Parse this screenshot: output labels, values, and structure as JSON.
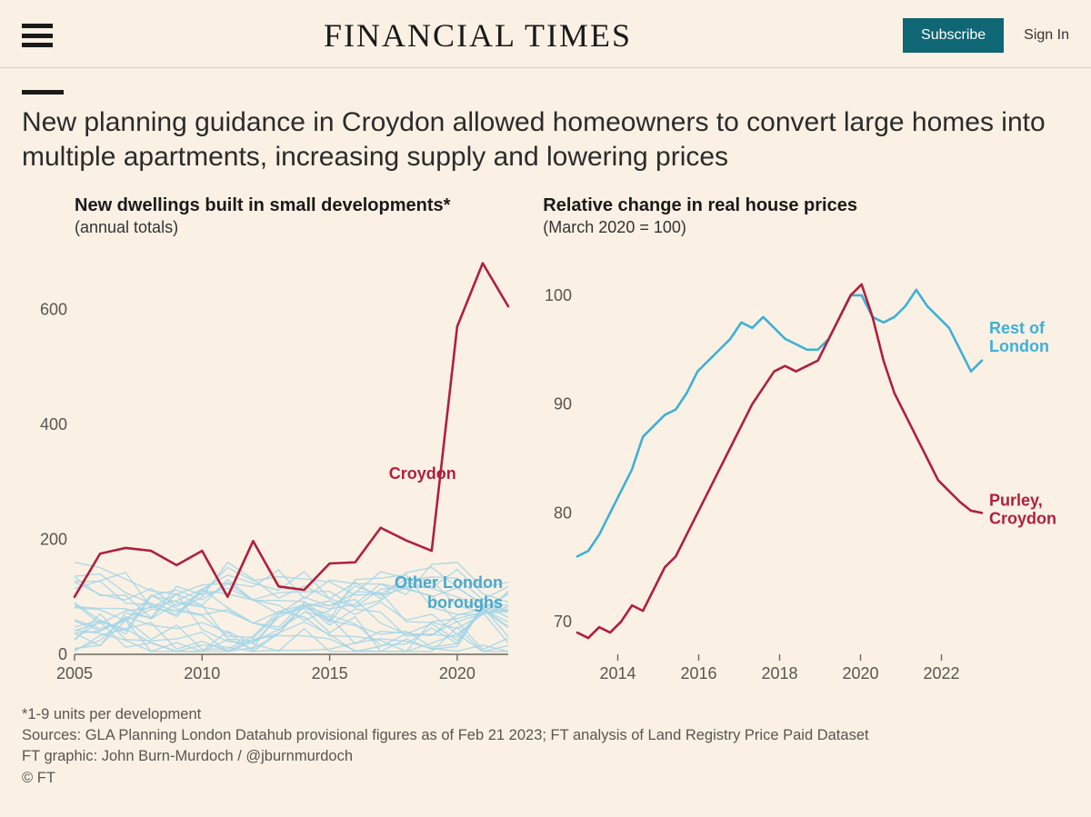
{
  "header": {
    "brand": "FINANCIAL TIMES",
    "subscribe_label": "Subscribe",
    "signin_label": "Sign In"
  },
  "kicker_rule_color": "#1a1a1a",
  "headline": "New planning guidance in Croydon allowed homeowners to convert large homes into multiple apartments, increasing supply and lowering prices",
  "chart_left": {
    "type": "line-multi",
    "title": "New dwellings built in small developments*",
    "subtitle": "(annual totals)",
    "title_fontsize": 20,
    "sub_fontsize": 18,
    "x_years": [
      2005,
      2006,
      2007,
      2008,
      2009,
      2010,
      2011,
      2012,
      2013,
      2014,
      2015,
      2016,
      2017,
      2018,
      2019,
      2020,
      2021,
      2022
    ],
    "x_ticks": [
      2005,
      2010,
      2015,
      2020
    ],
    "y_ticks": [
      0,
      200,
      400,
      600
    ],
    "ylim": [
      0,
      700
    ],
    "baseline_color": "#6b675f",
    "axis_label_color": "#595551",
    "croydon": {
      "color": "#b01f3c",
      "width": 2.6,
      "label": "Croydon",
      "values": [
        100,
        175,
        185,
        180,
        155,
        180,
        100,
        197,
        118,
        112,
        158,
        160,
        220,
        198,
        180,
        570,
        680,
        605
      ]
    },
    "others": {
      "color": "#a3d5e8",
      "label_color": "#4aa8cc",
      "width": 1.4,
      "label": "Other London boroughs",
      "series_count": 22,
      "band_low": 5,
      "band_high": 160
    }
  },
  "chart_right": {
    "type": "line",
    "title": "Relative change in real house prices",
    "subtitle": "(March 2020 = 100)",
    "title_fontsize": 20,
    "sub_fontsize": 18,
    "x_years": [
      2013,
      2014,
      2015,
      2016,
      2017,
      2018,
      2019,
      2020,
      2021,
      2022,
      2023
    ],
    "x_ticks": [
      2014,
      2016,
      2018,
      2020,
      2022
    ],
    "y_ticks": [
      70,
      80,
      90,
      100
    ],
    "ylim": [
      67,
      104
    ],
    "axis_label_color": "#595551",
    "rest": {
      "color": "#3fb0d6",
      "width": 2.6,
      "label": "Rest of London",
      "values": [
        76,
        76.5,
        78,
        80,
        82,
        84,
        87,
        88,
        89,
        89.5,
        91,
        93,
        94,
        95,
        96,
        97.5,
        97,
        98,
        97,
        96,
        95.5,
        95,
        95,
        96,
        98,
        100,
        100,
        98,
        97.5,
        98,
        99,
        100.5,
        99,
        98,
        97,
        95,
        93,
        94
      ]
    },
    "purley": {
      "color": "#b01f3c",
      "width": 2.6,
      "label": "Purley, Croydon",
      "values": [
        69,
        68.5,
        69.5,
        69,
        70,
        71.5,
        71,
        73,
        75,
        76,
        78,
        80,
        82,
        84,
        86,
        88,
        90,
        91.5,
        93,
        93.5,
        93,
        93.5,
        94,
        96,
        98,
        100,
        101,
        98,
        94,
        91,
        89,
        87,
        85,
        83,
        82,
        81,
        80.2,
        80
      ]
    }
  },
  "footnotes": {
    "l1": "*1-9 units per development",
    "l2": "Sources: GLA Planning London Datahub provisional figures as of Feb 21 2023; FT analysis of Land Registry Price Paid Dataset",
    "l3": "FT graphic: John Burn-Murdoch / @jburnmurdoch",
    "l4": "© FT"
  },
  "colors": {
    "page_bg": "#faf1e4",
    "text": "#2b2b2b",
    "muted": "#595551",
    "teal": "#0f6674"
  }
}
